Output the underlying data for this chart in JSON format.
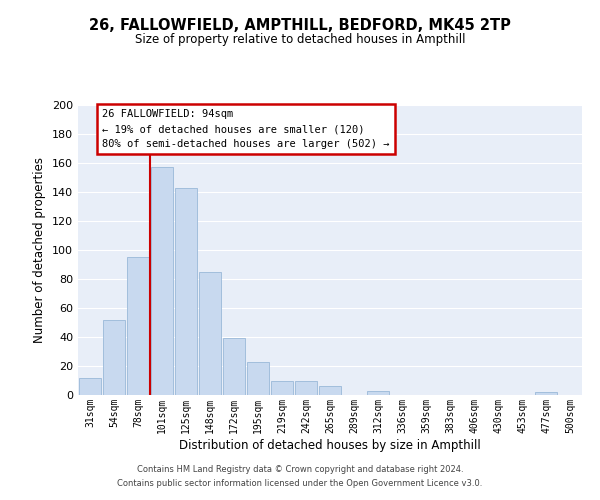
{
  "title": "26, FALLOWFIELD, AMPTHILL, BEDFORD, MK45 2TP",
  "subtitle": "Size of property relative to detached houses in Ampthill",
  "xlabel": "Distribution of detached houses by size in Ampthill",
  "ylabel": "Number of detached properties",
  "bar_labels": [
    "31sqm",
    "54sqm",
    "78sqm",
    "101sqm",
    "125sqm",
    "148sqm",
    "172sqm",
    "195sqm",
    "219sqm",
    "242sqm",
    "265sqm",
    "289sqm",
    "312sqm",
    "336sqm",
    "359sqm",
    "383sqm",
    "406sqm",
    "430sqm",
    "453sqm",
    "477sqm",
    "500sqm"
  ],
  "bar_values": [
    12,
    52,
    95,
    157,
    143,
    85,
    39,
    23,
    10,
    10,
    6,
    0,
    3,
    0,
    0,
    0,
    0,
    0,
    0,
    2,
    0
  ],
  "bar_color": "#c8d9ef",
  "bar_edge_color": "#9ab8d8",
  "vline_color": "#cc0000",
  "vline_x_index": 3,
  "ylim": [
    0,
    200
  ],
  "yticks": [
    0,
    20,
    40,
    60,
    80,
    100,
    120,
    140,
    160,
    180,
    200
  ],
  "annotation_title": "26 FALLOWFIELD: 94sqm",
  "annotation_line1": "← 19% of detached houses are smaller (120)",
  "annotation_line2": "80% of semi-detached houses are larger (502) →",
  "annotation_box_color": "#ffffff",
  "annotation_box_edge": "#cc0000",
  "grid_color": "#ffffff",
  "bg_color": "#e8eef8",
  "footer1": "Contains HM Land Registry data © Crown copyright and database right 2024.",
  "footer2": "Contains public sector information licensed under the Open Government Licence v3.0."
}
